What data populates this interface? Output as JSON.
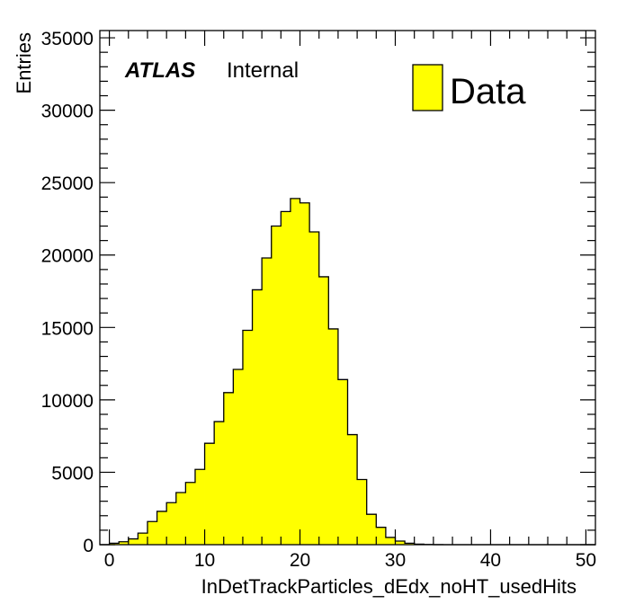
{
  "chart_data": {
    "type": "bar",
    "histogram": true,
    "xlabel": "InDetTrackParticles_dEdx_noHT_usedHits",
    "ylabel": "Entries",
    "xlim": [
      -1,
      51
    ],
    "ylim": [
      0,
      35500
    ],
    "xticks": [
      0,
      10,
      20,
      30,
      40,
      50
    ],
    "yticks": [
      0,
      5000,
      10000,
      15000,
      20000,
      25000,
      30000,
      35000
    ],
    "tick_labels_x": [
      "0",
      "10",
      "20",
      "30",
      "40",
      "50"
    ],
    "tick_labels_y": [
      "0",
      "5000",
      "10000",
      "15000",
      "20000",
      "25000",
      "30000",
      "35000"
    ],
    "bin_edges": [
      -1,
      0,
      1,
      2,
      3,
      4,
      5,
      6,
      7,
      8,
      9,
      10,
      11,
      12,
      13,
      14,
      15,
      16,
      17,
      18,
      19,
      20,
      21,
      22,
      23,
      24,
      25,
      26,
      27,
      28,
      29,
      30,
      31,
      32,
      33,
      34,
      35,
      36,
      37,
      38,
      39,
      40,
      41,
      42,
      43,
      44,
      45,
      46,
      47,
      48,
      49,
      50,
      51
    ],
    "series": [
      {
        "name": "Data",
        "color": "#ffff00",
        "values": [
          0,
          100,
          200,
          400,
          800,
          1600,
          2300,
          2900,
          3600,
          4300,
          5200,
          7000,
          8500,
          10500,
          12100,
          14800,
          17600,
          19800,
          22000,
          23000,
          23900,
          23600,
          21600,
          18500,
          14900,
          11400,
          7600,
          4500,
          2100,
          1200,
          500,
          250,
          100,
          40,
          15,
          5,
          0,
          0,
          0,
          0,
          0,
          0,
          0,
          0,
          0,
          0,
          0,
          0,
          0,
          0,
          0,
          0
        ]
      }
    ],
    "legend": {
      "position": "top-right",
      "entries": [
        "Data"
      ]
    },
    "annotation": {
      "experiment": "ATLAS",
      "status": "Internal"
    },
    "grid": false
  }
}
